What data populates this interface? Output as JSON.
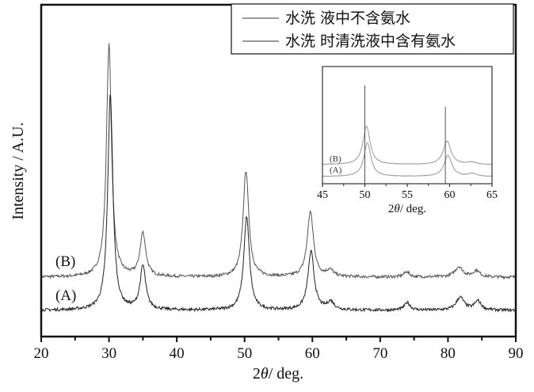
{
  "chart_data": {
    "type": "line",
    "title": "",
    "xlabel_prefix": "2",
    "xlabel_theta": "θ",
    "xlabel_suffix": "/ deg.",
    "ylabel": "Intensity / A.U.",
    "xlim": [
      20,
      90
    ],
    "ylim": [
      0,
      100
    ],
    "xticks": [
      20,
      30,
      40,
      50,
      60,
      70,
      80,
      90
    ],
    "minor_xticks": [
      25,
      35,
      45,
      55,
      65,
      75,
      85
    ],
    "yticks": [],
    "grid": false,
    "legend": {
      "placement": "top-right",
      "entries": [
        "水洗 液中不含氨水",
        "水洗 时清洗液中含有氨水"
      ]
    },
    "series": [
      {
        "name": "(B)",
        "label": "(B)",
        "color": "#555555",
        "baseline": 17.9,
        "peaks": [
          {
            "x": 30.0,
            "y": 87.8,
            "w": 0.45
          },
          {
            "x": 35.0,
            "y": 31.0,
            "w": 0.5
          },
          {
            "x": 50.2,
            "y": 50.0,
            "w": 0.5
          },
          {
            "x": 59.7,
            "y": 37.5,
            "w": 0.55
          },
          {
            "x": 62.6,
            "y": 19.8,
            "w": 0.6
          },
          {
            "x": 73.9,
            "y": 19.5,
            "w": 0.5
          },
          {
            "x": 81.6,
            "y": 21.0,
            "w": 0.7
          },
          {
            "x": 84.2,
            "y": 19.8,
            "w": 0.6
          }
        ]
      },
      {
        "name": "(A)",
        "label": "(A)",
        "color": "#222222",
        "baseline": 7.9,
        "peaks": [
          {
            "x": 30.2,
            "y": 73.0,
            "w": 0.45
          },
          {
            "x": 35.0,
            "y": 21.0,
            "w": 0.5
          },
          {
            "x": 50.3,
            "y": 36.0,
            "w": 0.5
          },
          {
            "x": 59.8,
            "y": 25.5,
            "w": 0.55
          },
          {
            "x": 62.7,
            "y": 10.3,
            "w": 0.6
          },
          {
            "x": 74.0,
            "y": 10.2,
            "w": 0.5
          },
          {
            "x": 81.8,
            "y": 11.8,
            "w": 0.7
          },
          {
            "x": 84.4,
            "y": 10.6,
            "w": 0.6
          }
        ]
      }
    ],
    "inset": {
      "xlim": [
        45,
        65
      ],
      "ylim": [
        2,
        100
      ],
      "xticks": [
        45,
        50,
        55,
        60,
        65
      ],
      "minor_xticks": [
        47.5,
        52.5,
        57.5,
        62.5
      ],
      "xlabel_prefix": "2",
      "xlabel_theta": "θ",
      "xlabel_suffix": "/ deg.",
      "series_labels": [
        "(B)",
        "(A)"
      ],
      "color": "#999999",
      "reference_lines": [
        50.0,
        59.5
      ]
    }
  }
}
